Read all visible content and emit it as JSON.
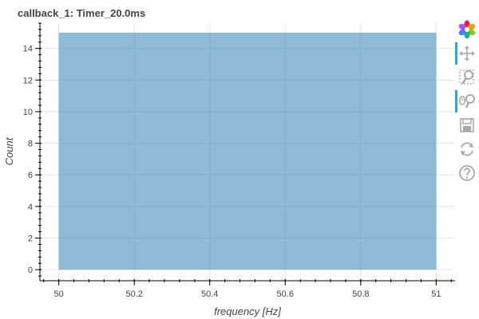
{
  "chart_data": {
    "type": "bar",
    "title": "callback_1: Timer_20.0ms",
    "xlabel": "frequency [Hz]",
    "ylabel": "Count",
    "bins": [
      {
        "left": 50.0,
        "right": 51.0,
        "value": 15
      }
    ],
    "xlim": [
      49.95,
      51.05
    ],
    "ylim": [
      -0.7,
      15.6
    ],
    "x_ticks": [
      50,
      50.2,
      50.4,
      50.6,
      50.8,
      51
    ],
    "x_tick_labels": [
      "50",
      "50.2",
      "50.4",
      "50.6",
      "50.8",
      "51"
    ],
    "y_ticks": [
      0,
      2,
      4,
      6,
      8,
      10,
      12,
      14
    ],
    "y_tick_labels": [
      "0",
      "2",
      "4",
      "6",
      "8",
      "10",
      "12",
      "14"
    ],
    "grid": true,
    "bar_color": "#1f77b4",
    "bar_alpha": 0.5
  },
  "toolbar": {
    "tools": [
      {
        "name": "bokeh-logo-icon",
        "active": false,
        "interactable": false
      },
      {
        "name": "pan-tool-icon",
        "active": true,
        "interactable": true
      },
      {
        "name": "box-zoom-tool-icon",
        "active": false,
        "interactable": true
      },
      {
        "name": "wheel-zoom-tool-icon",
        "active": true,
        "interactable": true
      },
      {
        "name": "save-tool-icon",
        "active": false,
        "interactable": true
      },
      {
        "name": "reset-tool-icon",
        "active": false,
        "interactable": true
      },
      {
        "name": "help-tool-icon",
        "active": false,
        "interactable": true
      }
    ]
  }
}
